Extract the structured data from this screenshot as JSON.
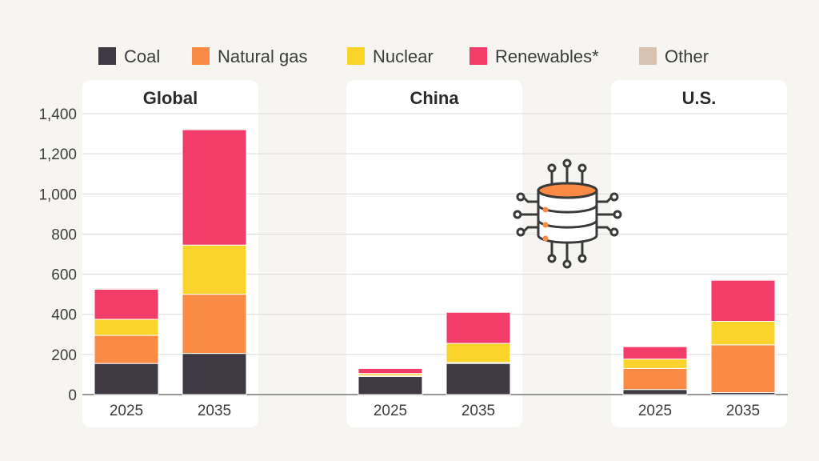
{
  "colors": {
    "coal": "#3f3944",
    "natural_gas": "#fa8a44",
    "nuclear": "#fad42a",
    "renewables": "#f23d6b",
    "other": "#d8c3b0",
    "icon_accent": "#fa8a44",
    "icon_stroke": "#3a3a3a"
  },
  "legend": [
    {
      "key": "coal",
      "label": "Coal"
    },
    {
      "key": "natural_gas",
      "label": "Natural gas"
    },
    {
      "key": "nuclear",
      "label": "Nuclear"
    },
    {
      "key": "renewables",
      "label": "Renewables*"
    },
    {
      "key": "other",
      "label": "Other"
    }
  ],
  "decoration": {
    "icon": "server-database-icon"
  },
  "chart_data": {
    "type": "bar",
    "stacked": true,
    "ylim": [
      0,
      1400
    ],
    "yticks": [
      0,
      200,
      400,
      600,
      800,
      1000,
      1200,
      1400
    ],
    "ytick_labels": [
      "0",
      "200",
      "400",
      "600",
      "800",
      "1,000",
      "1,200",
      "1,400"
    ],
    "grid": true,
    "legend_position": "top",
    "series_keys": [
      "coal",
      "natural_gas",
      "nuclear",
      "renewables",
      "other"
    ],
    "panels": [
      {
        "title": "Global",
        "categories": [
          "2025",
          "2035"
        ],
        "series": [
          {
            "name": "Coal",
            "values": [
              155,
              205
            ]
          },
          {
            "name": "Natural gas",
            "values": [
              140,
              295
            ]
          },
          {
            "name": "Nuclear",
            "values": [
              80,
              245
            ]
          },
          {
            "name": "Renewables",
            "values": [
              150,
              575
            ]
          },
          {
            "name": "Other",
            "values": [
              5,
              5
            ]
          }
        ]
      },
      {
        "title": "China",
        "categories": [
          "2025",
          "2035"
        ],
        "series": [
          {
            "name": "Coal",
            "values": [
              90,
              155
            ]
          },
          {
            "name": "Natural gas",
            "values": [
              5,
              5
            ]
          },
          {
            "name": "Nuclear",
            "values": [
              10,
              95
            ]
          },
          {
            "name": "Renewables",
            "values": [
              25,
              155
            ]
          },
          {
            "name": "Other",
            "values": [
              0,
              0
            ]
          }
        ]
      },
      {
        "title": "U.S.",
        "categories": [
          "2025",
          "2035"
        ],
        "series": [
          {
            "name": "Coal",
            "values": [
              25,
              10
            ]
          },
          {
            "name": "Natural gas",
            "values": [
              105,
              238
            ]
          },
          {
            "name": "Nuclear",
            "values": [
              47,
              117
            ]
          },
          {
            "name": "Renewables",
            "values": [
              62,
              205
            ]
          },
          {
            "name": "Other",
            "values": [
              3,
              5
            ]
          }
        ]
      }
    ]
  }
}
